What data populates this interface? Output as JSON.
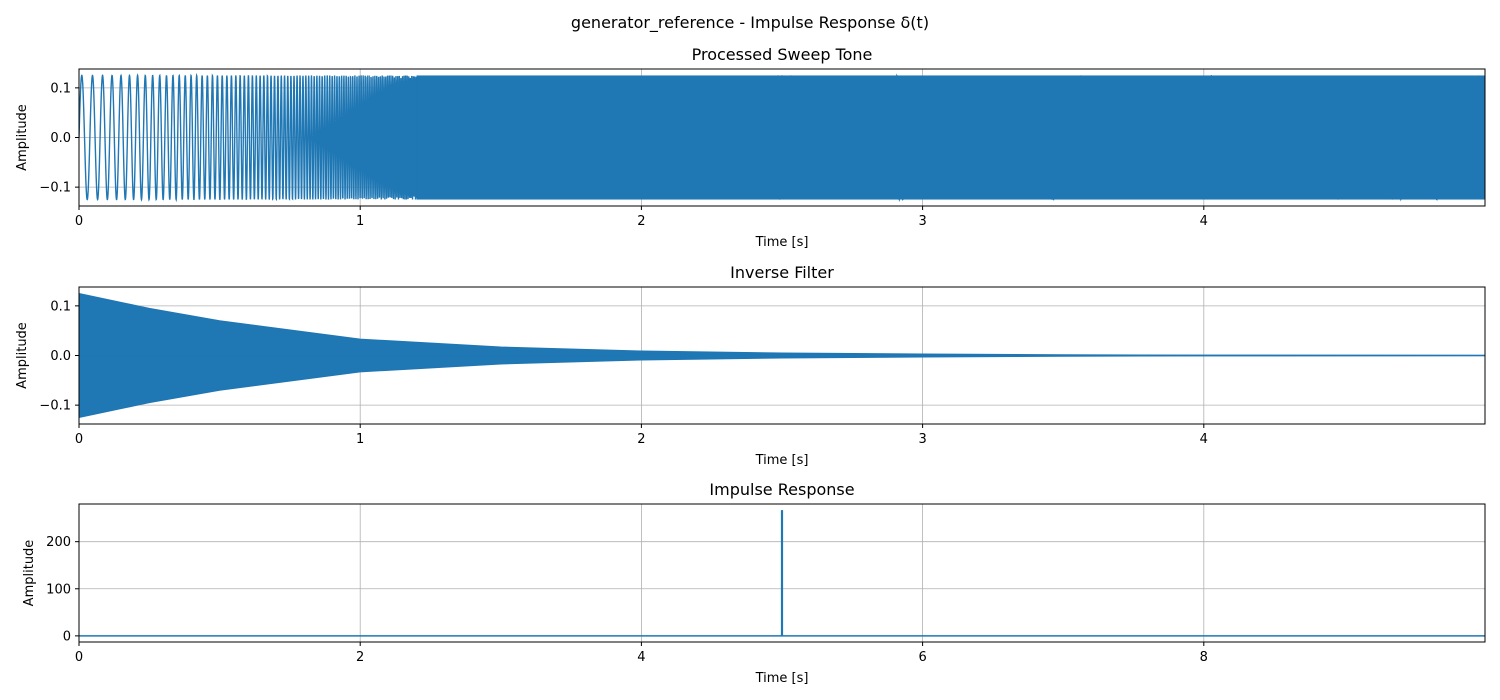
{
  "figure": {
    "suptitle": "generator_reference - Impulse Response δ(t)"
  },
  "colors": {
    "series": "#1f77b4",
    "grid": "#b0b0b0"
  },
  "chart_data": [
    {
      "type": "line",
      "title": "Processed Sweep Tone",
      "xlabel": "Time [s]",
      "ylabel": "Amplitude",
      "xlim": [
        0,
        5
      ],
      "ylim": [
        -0.138,
        0.138
      ],
      "xticks": [
        0,
        1,
        2,
        3,
        4
      ],
      "xtick_labels": [
        "0",
        "1",
        "2",
        "3",
        "4"
      ],
      "yticks": [
        0.1,
        0.0,
        -0.1
      ],
      "ytick_labels": [
        "0.1",
        "0.0",
        "−0.1"
      ],
      "grid": true,
      "signal": {
        "kind": "log_sweep",
        "amplitude": 0.125,
        "duration_s": 5,
        "description_cycles_first_second": 25
      }
    },
    {
      "type": "line",
      "title": "Inverse Filter",
      "xlabel": "Time [s]",
      "ylabel": "Amplitude",
      "xlim": [
        0,
        5
      ],
      "ylim": [
        -0.138,
        0.138
      ],
      "xticks": [
        0,
        1,
        2,
        3,
        4
      ],
      "xtick_labels": [
        "0",
        "1",
        "2",
        "3",
        "4"
      ],
      "yticks": [
        0.1,
        0.0,
        -0.1
      ],
      "ytick_labels": [
        "0.1",
        "0.0",
        "−0.1"
      ],
      "grid": true,
      "envelope": {
        "x": [
          0,
          0.25,
          0.5,
          1,
          1.5,
          2,
          2.5,
          3,
          3.5,
          4,
          5
        ],
        "y": [
          0.125,
          0.095,
          0.07,
          0.033,
          0.017,
          0.009,
          0.005,
          0.003,
          0.0015,
          0.0008,
          0.0002
        ]
      }
    },
    {
      "type": "line",
      "title": "Impulse Response",
      "xlabel": "Time [s]",
      "ylabel": "Amplitude",
      "xlim": [
        0,
        10
      ],
      "ylim": [
        -13,
        280
      ],
      "xticks": [
        0,
        2,
        4,
        6,
        8
      ],
      "xtick_labels": [
        "0",
        "2",
        "4",
        "6",
        "8"
      ],
      "yticks": [
        0,
        100,
        200
      ],
      "ytick_labels": [
        "0",
        "100",
        "200"
      ],
      "grid": true,
      "baseline": 0,
      "peak": {
        "x": 5,
        "y": 267
      }
    }
  ]
}
